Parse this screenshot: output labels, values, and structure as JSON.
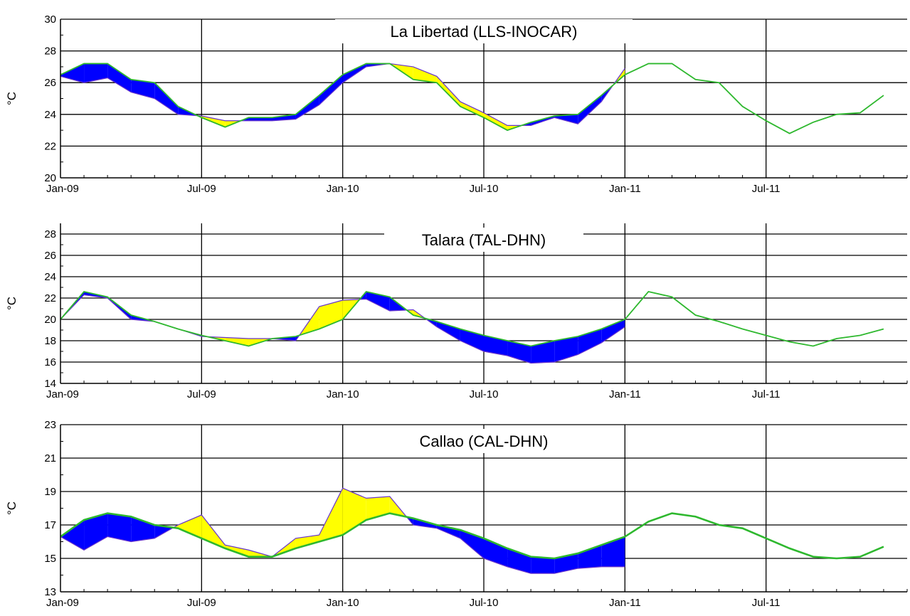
{
  "chart_data": [
    {
      "type": "area",
      "title": "La Libertad (LLS-INOCAR)",
      "ylabel": "°C",
      "xlabel": "",
      "ylim": [
        20,
        30
      ],
      "yticks": [
        20,
        22,
        24,
        26,
        28,
        30
      ],
      "x_tick_labels": [
        "Jan-09",
        "Jul-09",
        "Jan-10",
        "Jul-10",
        "Jan-11",
        "Jul-11"
      ],
      "grid": true,
      "colors": {
        "climatology": "#2eb82e",
        "warm_anomaly": "#ffff00",
        "cold_anomaly": "#0000ff",
        "observed_edge": "#6633cc"
      },
      "climatology_x": [
        "2009-01",
        "2009-02",
        "2009-03",
        "2009-04",
        "2009-05",
        "2009-06",
        "2009-07",
        "2009-08",
        "2009-09",
        "2009-10",
        "2009-11",
        "2009-12",
        "2010-01",
        "2010-02",
        "2010-03",
        "2010-04",
        "2010-05",
        "2010-06",
        "2010-07",
        "2010-08",
        "2010-09",
        "2010-10",
        "2010-11",
        "2010-12",
        "2011-01",
        "2011-02",
        "2011-03",
        "2011-04",
        "2011-05",
        "2011-06",
        "2011-07",
        "2011-08",
        "2011-09",
        "2011-10",
        "2011-11",
        "2011-12"
      ],
      "climatology": [
        26.5,
        27.2,
        27.2,
        26.2,
        26.0,
        24.5,
        23.8,
        23.2,
        23.8,
        23.8,
        24.0,
        25.2,
        26.5,
        27.2,
        27.2,
        26.2,
        26.0,
        24.5,
        23.8,
        23.0,
        23.5,
        23.9,
        24.0,
        25.2,
        26.5,
        27.2,
        27.2,
        26.2,
        26.0,
        24.5,
        23.6,
        22.8,
        23.5,
        24.0,
        24.1,
        25.2
      ],
      "observed_x": [
        "2009-01",
        "2009-02",
        "2009-03",
        "2009-04",
        "2009-05",
        "2009-06",
        "2009-07",
        "2009-08",
        "2009-09",
        "2009-10",
        "2009-11",
        "2009-12",
        "2010-01",
        "2010-02",
        "2010-03",
        "2010-04",
        "2010-05",
        "2010-06",
        "2010-07",
        "2010-08",
        "2010-09",
        "2010-10",
        "2010-11",
        "2010-12",
        "2011-01"
      ],
      "observed": [
        26.4,
        26.0,
        26.3,
        25.4,
        25.0,
        24.0,
        23.9,
        23.6,
        23.6,
        23.6,
        23.7,
        24.6,
        26.0,
        27.0,
        27.2,
        27.0,
        26.4,
        24.8,
        24.1,
        23.3,
        23.3,
        23.8,
        23.4,
        24.8,
        26.9
      ]
    },
    {
      "type": "area",
      "title": "Talara (TAL-DHN)",
      "ylabel": "°C",
      "xlabel": "",
      "ylim": [
        14,
        29
      ],
      "yticks": [
        14,
        16,
        18,
        20,
        22,
        24,
        26,
        28
      ],
      "x_tick_labels": [
        "Jan-09",
        "Jul-09",
        "Jan-10",
        "Jul-10",
        "Jan-11",
        "Jul-11"
      ],
      "grid": true,
      "colors": {
        "climatology": "#2eb82e",
        "warm_anomaly": "#ffff00",
        "cold_anomaly": "#0000ff",
        "observed_edge": "#6633cc"
      },
      "climatology_x": [
        "2009-01",
        "2009-02",
        "2009-03",
        "2009-04",
        "2009-05",
        "2009-06",
        "2009-07",
        "2009-08",
        "2009-09",
        "2009-10",
        "2009-11",
        "2009-12",
        "2010-01",
        "2010-02",
        "2010-03",
        "2010-04",
        "2010-05",
        "2010-06",
        "2010-07",
        "2010-08",
        "2010-09",
        "2010-10",
        "2010-11",
        "2010-12",
        "2011-01",
        "2011-02",
        "2011-03",
        "2011-04",
        "2011-05",
        "2011-06",
        "2011-07",
        "2011-08",
        "2011-09",
        "2011-10",
        "2011-11",
        "2011-12"
      ],
      "climatology": [
        20.0,
        22.6,
        22.1,
        20.4,
        19.8,
        19.1,
        18.5,
        18.0,
        17.5,
        18.2,
        18.4,
        19.1,
        20.0,
        22.6,
        22.1,
        20.4,
        19.8,
        19.1,
        18.5,
        18.0,
        17.5,
        18.0,
        18.4,
        19.1,
        20.0,
        22.6,
        22.1,
        20.4,
        19.8,
        19.1,
        18.5,
        17.9,
        17.5,
        18.2,
        18.5,
        19.1
      ],
      "observed_x": [
        "2009-01",
        "2009-02",
        "2009-03",
        "2009-04",
        "2009-05",
        "2009-06",
        "2009-07",
        "2009-08",
        "2009-09",
        "2009-10",
        "2009-11",
        "2009-12",
        "2010-01",
        "2010-02",
        "2010-03",
        "2010-04",
        "2010-05",
        "2010-06",
        "2010-07",
        "2010-08",
        "2010-09",
        "2010-10",
        "2010-11",
        "2010-12",
        "2011-01"
      ],
      "observed": [
        20.0,
        22.3,
        22.0,
        20.0,
        19.8,
        19.1,
        18.4,
        18.3,
        18.2,
        18.2,
        18.0,
        21.2,
        21.8,
        21.9,
        20.8,
        20.9,
        19.3,
        18.0,
        17.0,
        16.6,
        15.9,
        16.0,
        16.7,
        17.8,
        19.3
      ]
    },
    {
      "type": "area",
      "title": "Callao (CAL-DHN)",
      "ylabel": "°C",
      "xlabel": "",
      "ylim": [
        13,
        23
      ],
      "yticks": [
        13,
        15,
        17,
        19,
        21,
        23
      ],
      "x_tick_labels": [
        "Jan-09",
        "Jul-09",
        "Jan-10",
        "Jul-10",
        "Jan-11",
        "Jul-11"
      ],
      "grid": true,
      "colors": {
        "climatology": "#2eb82e",
        "warm_anomaly": "#ffff00",
        "cold_anomaly": "#0000ff",
        "observed_edge": "#6633cc"
      },
      "climatology_x": [
        "2009-01",
        "2009-02",
        "2009-03",
        "2009-04",
        "2009-05",
        "2009-06",
        "2009-07",
        "2009-08",
        "2009-09",
        "2009-10",
        "2009-11",
        "2009-12",
        "2010-01",
        "2010-02",
        "2010-03",
        "2010-04",
        "2010-05",
        "2010-06",
        "2010-07",
        "2010-08",
        "2010-09",
        "2010-10",
        "2010-11",
        "2010-12",
        "2011-01",
        "2011-02",
        "2011-03",
        "2011-04",
        "2011-05",
        "2011-06",
        "2011-07",
        "2011-08",
        "2011-09",
        "2011-10",
        "2011-11",
        "2011-12"
      ],
      "climatology": [
        16.3,
        17.3,
        17.7,
        17.5,
        17.0,
        16.8,
        16.2,
        15.6,
        15.1,
        15.1,
        15.6,
        16.0,
        16.4,
        17.3,
        17.7,
        17.4,
        17.0,
        16.7,
        16.2,
        15.6,
        15.1,
        15.0,
        15.3,
        15.8,
        16.3,
        17.2,
        17.7,
        17.5,
        17.0,
        16.8,
        16.2,
        15.6,
        15.1,
        15.0,
        15.1,
        15.7
      ],
      "observed_x": [
        "2009-01",
        "2009-02",
        "2009-03",
        "2009-04",
        "2009-05",
        "2009-06",
        "2009-07",
        "2009-08",
        "2009-09",
        "2009-10",
        "2009-11",
        "2009-12",
        "2010-01",
        "2010-02",
        "2010-03",
        "2010-04",
        "2010-05",
        "2010-06",
        "2010-07",
        "2010-08",
        "2010-09",
        "2010-10",
        "2010-11",
        "2010-12",
        "2011-01"
      ],
      "observed": [
        16.3,
        15.5,
        16.3,
        16.0,
        16.2,
        17.0,
        17.6,
        15.8,
        15.5,
        15.1,
        16.2,
        16.4,
        19.2,
        18.6,
        18.7,
        17.0,
        16.8,
        16.2,
        15.0,
        14.5,
        14.1,
        14.1,
        14.4,
        14.5,
        14.5
      ]
    }
  ]
}
